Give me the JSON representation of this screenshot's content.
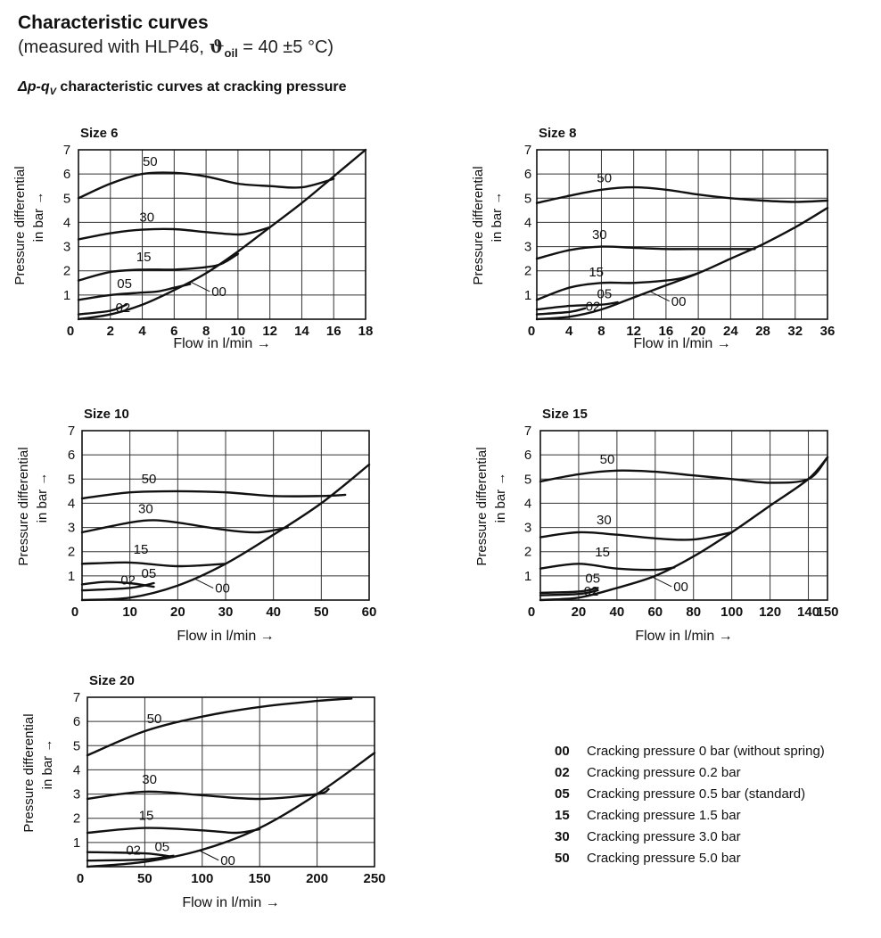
{
  "header": {
    "title": "Characteristic curves",
    "subtitle_prefix": "(measured with HLP46, ",
    "theta": "ϑ",
    "theta_sub": "oil",
    "subtitle_suffix": " = 40 ±5 °C)",
    "section_delta": "Δp-q",
    "section_sub": "V",
    "section_rest": " characteristic curves at cracking pressure"
  },
  "legend": [
    {
      "code": "00",
      "text": "Cracking pressure 0 bar (without spring)"
    },
    {
      "code": "02",
      "text": "Cracking pressure 0.2 bar"
    },
    {
      "code": "05",
      "text": "Cracking pressure 0.5 bar (standard)"
    },
    {
      "code": "15",
      "text": "Cracking pressure 1.5 bar"
    },
    {
      "code": "30",
      "text": "Cracking pressure 3.0 bar"
    },
    {
      "code": "50",
      "text": "Cracking pressure 5.0 bar"
    }
  ],
  "chart_data": [
    {
      "type": "line",
      "title": "Size 6",
      "xlabel": "Flow in l/min →",
      "ylabel": "Pressure differential in bar →",
      "xlim": [
        0,
        18
      ],
      "ylim": [
        0,
        7
      ],
      "xticks": [
        0,
        2,
        4,
        6,
        8,
        10,
        12,
        14,
        16,
        18
      ],
      "yticks": [
        1,
        2,
        3,
        4,
        5,
        6,
        7
      ],
      "grid": true,
      "series": [
        {
          "name": "50",
          "x": [
            0,
            2,
            4,
            6,
            8,
            10,
            12,
            14,
            16
          ],
          "y": [
            5.0,
            5.6,
            6.0,
            6.05,
            5.9,
            5.6,
            5.5,
            5.45,
            5.8
          ]
        },
        {
          "name": "30",
          "x": [
            0,
            2,
            4,
            6,
            8,
            10,
            11,
            12
          ],
          "y": [
            3.3,
            3.55,
            3.7,
            3.72,
            3.6,
            3.5,
            3.6,
            3.8
          ]
        },
        {
          "name": "15",
          "x": [
            0,
            2,
            4,
            6,
            8,
            9,
            10
          ],
          "y": [
            1.6,
            1.95,
            2.05,
            2.05,
            2.15,
            2.3,
            2.7
          ]
        },
        {
          "name": "05",
          "x": [
            0,
            2,
            4,
            5,
            6,
            7
          ],
          "y": [
            0.8,
            1.0,
            1.1,
            1.15,
            1.3,
            1.45
          ]
        },
        {
          "name": "02",
          "x": [
            0,
            2,
            3
          ],
          "y": [
            0.2,
            0.35,
            0.6
          ]
        },
        {
          "name": "00",
          "x": [
            0,
            2,
            4,
            6,
            8,
            10,
            12,
            14,
            16,
            18
          ],
          "y": [
            0,
            0.2,
            0.6,
            1.2,
            1.9,
            2.8,
            3.8,
            4.8,
            5.9,
            7.0
          ]
        }
      ]
    },
    {
      "type": "line",
      "title": "Size 8",
      "xlabel": "Flow in l/min →",
      "ylabel": "Pressure differential in bar →",
      "xlim": [
        0,
        36
      ],
      "ylim": [
        0,
        7
      ],
      "xticks": [
        0,
        4,
        8,
        12,
        16,
        20,
        24,
        28,
        32,
        36
      ],
      "yticks": [
        1,
        2,
        3,
        4,
        5,
        6,
        7
      ],
      "grid": true,
      "series": [
        {
          "name": "50",
          "x": [
            0,
            4,
            8,
            12,
            16,
            20,
            24,
            28,
            32,
            36
          ],
          "y": [
            4.8,
            5.1,
            5.35,
            5.45,
            5.35,
            5.15,
            5.0,
            4.9,
            4.85,
            4.9
          ]
        },
        {
          "name": "30",
          "x": [
            0,
            4,
            8,
            12,
            16,
            20,
            24,
            27
          ],
          "y": [
            2.5,
            2.85,
            3.0,
            2.95,
            2.9,
            2.9,
            2.9,
            2.9
          ]
        },
        {
          "name": "15",
          "x": [
            0,
            4,
            8,
            12,
            16,
            18,
            20
          ],
          "y": [
            0.8,
            1.3,
            1.5,
            1.5,
            1.6,
            1.7,
            1.9
          ]
        },
        {
          "name": "05",
          "x": [
            0,
            4,
            8,
            10
          ],
          "y": [
            0.4,
            0.55,
            0.6,
            0.7
          ]
        },
        {
          "name": "02",
          "x": [
            0,
            4,
            6
          ],
          "y": [
            0.2,
            0.3,
            0.45
          ]
        },
        {
          "name": "00",
          "x": [
            0,
            4,
            8,
            12,
            16,
            20,
            24,
            28,
            32,
            36
          ],
          "y": [
            0,
            0.1,
            0.4,
            0.9,
            1.4,
            1.9,
            2.5,
            3.1,
            3.8,
            4.6
          ]
        }
      ]
    },
    {
      "type": "line",
      "title": "Size 10",
      "xlabel": "Flow in l/min →",
      "ylabel": "Pressure differential in bar →",
      "xlim": [
        0,
        60
      ],
      "ylim": [
        0,
        7
      ],
      "xticks": [
        0,
        10,
        20,
        30,
        40,
        50,
        60
      ],
      "yticks": [
        1,
        2,
        3,
        4,
        5,
        6,
        7
      ],
      "grid": true,
      "series": [
        {
          "name": "50",
          "x": [
            0,
            10,
            20,
            30,
            40,
            50,
            55
          ],
          "y": [
            4.2,
            4.45,
            4.5,
            4.45,
            4.3,
            4.3,
            4.35
          ]
        },
        {
          "name": "30",
          "x": [
            0,
            10,
            15,
            20,
            30,
            37,
            43
          ],
          "y": [
            2.8,
            3.2,
            3.3,
            3.2,
            2.9,
            2.8,
            3.0
          ]
        },
        {
          "name": "15",
          "x": [
            0,
            10,
            20,
            30
          ],
          "y": [
            1.5,
            1.55,
            1.4,
            1.5
          ]
        },
        {
          "name": "05",
          "x": [
            0,
            10,
            15
          ],
          "y": [
            0.4,
            0.5,
            0.7
          ]
        },
        {
          "name": "02",
          "x": [
            0,
            5,
            10,
            15
          ],
          "y": [
            0.65,
            0.75,
            0.7,
            0.55
          ]
        },
        {
          "name": "00",
          "x": [
            0,
            10,
            20,
            30,
            40,
            50,
            60
          ],
          "y": [
            0,
            0.1,
            0.6,
            1.5,
            2.7,
            4.0,
            5.6
          ]
        }
      ]
    },
    {
      "type": "line",
      "title": "Size 15",
      "xlabel": "Flow in l/min →",
      "ylabel": "Pressure differential in bar →",
      "xlim": [
        0,
        150
      ],
      "ylim": [
        0,
        7
      ],
      "xticks": [
        0,
        20,
        40,
        60,
        80,
        100,
        120,
        140,
        150
      ],
      "yticks": [
        1,
        2,
        3,
        4,
        5,
        6,
        7
      ],
      "grid": true,
      "series": [
        {
          "name": "50",
          "x": [
            0,
            20,
            40,
            60,
            80,
            100,
            120,
            140,
            150
          ],
          "y": [
            4.9,
            5.2,
            5.35,
            5.3,
            5.15,
            5.0,
            4.85,
            5.0,
            5.9
          ]
        },
        {
          "name": "30",
          "x": [
            0,
            20,
            40,
            60,
            80,
            100
          ],
          "y": [
            2.6,
            2.8,
            2.7,
            2.55,
            2.5,
            2.8
          ]
        },
        {
          "name": "15",
          "x": [
            0,
            20,
            40,
            60,
            70
          ],
          "y": [
            1.3,
            1.5,
            1.3,
            1.25,
            1.35
          ]
        },
        {
          "name": "05",
          "x": [
            0,
            20,
            30
          ],
          "y": [
            0.3,
            0.35,
            0.5
          ]
        },
        {
          "name": "02",
          "x": [
            0,
            20,
            30
          ],
          "y": [
            0.2,
            0.25,
            0.4
          ]
        },
        {
          "name": "00",
          "x": [
            0,
            20,
            40,
            60,
            80,
            100,
            120,
            140,
            150
          ],
          "y": [
            0,
            0.1,
            0.5,
            1.0,
            1.8,
            2.8,
            3.9,
            5.0,
            5.9
          ]
        }
      ]
    },
    {
      "type": "line",
      "title": "Size 20",
      "xlabel": "Flow in l/min →",
      "ylabel": "Pressure differential in bar →",
      "xlim": [
        0,
        250
      ],
      "ylim": [
        0,
        7
      ],
      "xticks": [
        0,
        50,
        100,
        150,
        200,
        250
      ],
      "yticks": [
        1,
        2,
        3,
        4,
        5,
        6,
        7
      ],
      "grid": true,
      "series": [
        {
          "name": "50",
          "x": [
            0,
            50,
            100,
            150,
            200,
            230
          ],
          "y": [
            4.6,
            5.6,
            6.2,
            6.6,
            6.85,
            6.95
          ]
        },
        {
          "name": "30",
          "x": [
            0,
            50,
            100,
            150,
            200,
            210
          ],
          "y": [
            2.8,
            3.1,
            2.95,
            2.8,
            3.0,
            3.2
          ]
        },
        {
          "name": "15",
          "x": [
            0,
            50,
            100,
            130,
            150
          ],
          "y": [
            1.4,
            1.6,
            1.5,
            1.4,
            1.55
          ]
        },
        {
          "name": "05",
          "x": [
            0,
            50,
            75
          ],
          "y": [
            0.25,
            0.3,
            0.45
          ]
        },
        {
          "name": "02",
          "x": [
            0,
            50,
            75
          ],
          "y": [
            0.6,
            0.55,
            0.4
          ]
        },
        {
          "name": "00",
          "x": [
            0,
            50,
            100,
            150,
            200,
            250
          ],
          "y": [
            0,
            0.2,
            0.7,
            1.6,
            3.0,
            4.7
          ]
        }
      ]
    }
  ]
}
